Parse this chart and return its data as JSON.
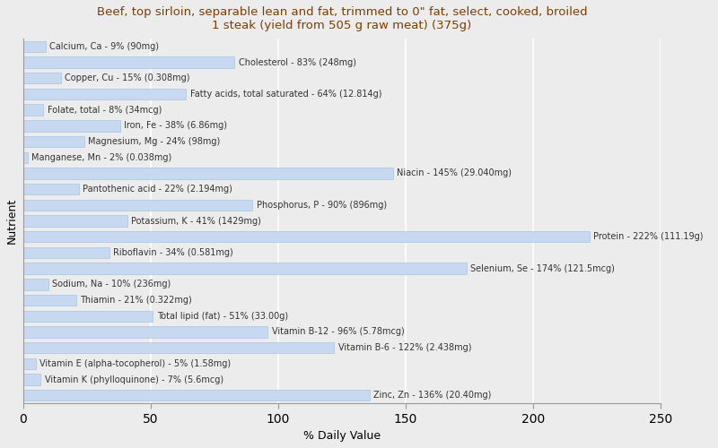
{
  "title_line1": "Beef, top sirloin, separable lean and fat, trimmed to 0\" fat, select, cooked, broiled",
  "title_line2": "1 steak (yield from 505 g raw meat) (375g)",
  "xlabel": "% Daily Value",
  "ylabel": "Nutrient",
  "bar_color": "#c6d9f1",
  "bar_edge_color": "#a8c4e0",
  "background_color": "#ececec",
  "plot_bg_color": "#ececec",
  "xlim": [
    0,
    250
  ],
  "xticks": [
    0,
    50,
    100,
    150,
    200,
    250
  ],
  "grid_color": "#ffffff",
  "text_color": "#333333",
  "title_color": "#7b3e00",
  "nutrients": [
    "Calcium, Ca - 9% (90mg)",
    "Cholesterol - 83% (248mg)",
    "Copper, Cu - 15% (0.308mg)",
    "Fatty acids, total saturated - 64% (12.814g)",
    "Folate, total - 8% (34mcg)",
    "Iron, Fe - 38% (6.86mg)",
    "Magnesium, Mg - 24% (98mg)",
    "Manganese, Mn - 2% (0.038mg)",
    "Niacin - 145% (29.040mg)",
    "Pantothenic acid - 22% (2.194mg)",
    "Phosphorus, P - 90% (896mg)",
    "Potassium, K - 41% (1429mg)",
    "Protein - 222% (111.19g)",
    "Riboflavin - 34% (0.581mg)",
    "Selenium, Se - 174% (121.5mcg)",
    "Sodium, Na - 10% (236mg)",
    "Thiamin - 21% (0.322mg)",
    "Total lipid (fat) - 51% (33.00g)",
    "Vitamin B-12 - 96% (5.78mcg)",
    "Vitamin B-6 - 122% (2.438mg)",
    "Vitamin E (alpha-tocopherol) - 5% (1.58mg)",
    "Vitamin K (phylloquinone) - 7% (5.6mcg)",
    "Zinc, Zn - 136% (20.40mg)"
  ],
  "values": [
    9,
    83,
    15,
    64,
    8,
    38,
    24,
    2,
    145,
    22,
    90,
    41,
    222,
    34,
    174,
    10,
    21,
    51,
    96,
    122,
    5,
    7,
    136
  ],
  "label_fontsize": 7.0,
  "bar_height": 0.7,
  "title_fontsize": 9.5,
  "axis_label_fontsize": 9
}
